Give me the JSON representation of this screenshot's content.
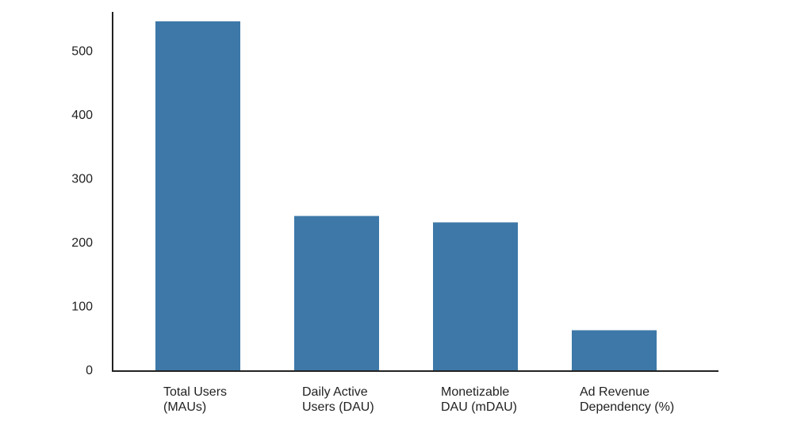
{
  "chart_data": {
    "type": "bar",
    "categories": [
      [
        "Total Users",
        "(MAUs)"
      ],
      [
        "Daily Active",
        "Users (DAU)"
      ],
      [
        "Monetizable",
        "DAU (mDAU)"
      ],
      [
        "Ad Revenue",
        "Dependency (%)"
      ]
    ],
    "values": [
      548,
      243,
      233,
      64
    ],
    "ylim": [
      0,
      560
    ],
    "yticks": [
      0,
      100,
      200,
      300,
      400,
      500
    ],
    "title": "",
    "xlabel": "",
    "ylabel": "",
    "grid": false,
    "bar_color": "#3d78a8",
    "axis_color": "#222222"
  }
}
